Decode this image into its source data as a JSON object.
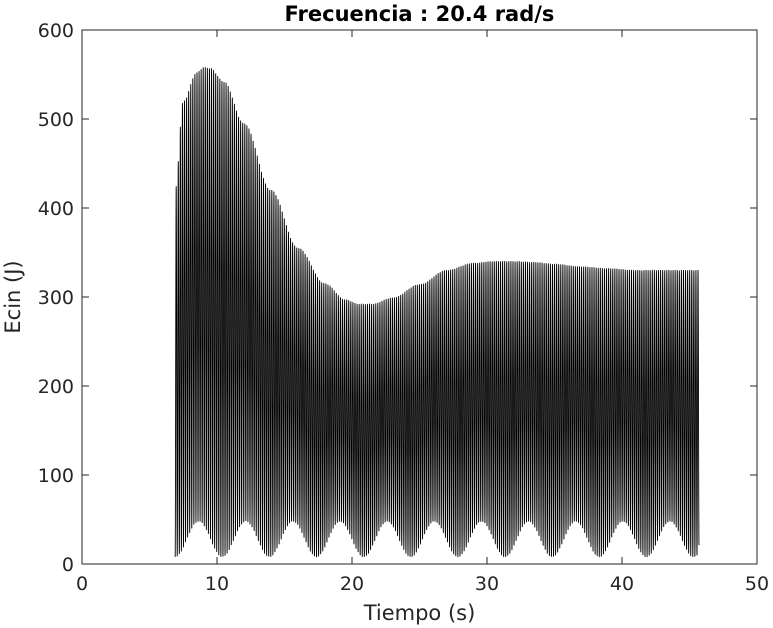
{
  "chart_data": {
    "type": "line",
    "title": "Frecuencia : 20.4 rad/s",
    "xlabel": "Tiempo (s)",
    "ylabel": "Ecin (J)",
    "xlim": [
      0,
      50
    ],
    "ylim": [
      0,
      600
    ],
    "xticks": [
      0,
      10,
      20,
      30,
      40,
      50
    ],
    "yticks": [
      0,
      100,
      200,
      300,
      400,
      500,
      600
    ],
    "xtick_labels": [
      "0",
      "10",
      "20",
      "30",
      "40",
      "50"
    ],
    "ytick_labels": [
      "0",
      "100",
      "200",
      "300",
      "400",
      "500",
      "600"
    ],
    "grid": false,
    "legend": "none",
    "series": [
      {
        "color": "#000000",
        "angular_frequency": 20.4,
        "x_start": 6.9,
        "x_end": 45.7,
        "envelope": {
          "x": [
            6.9,
            7.5,
            8.5,
            9.0,
            9.5,
            10.5,
            12.0,
            14.0,
            16.0,
            18.0,
            19.5,
            20.5,
            21.5,
            23.0,
            25.0,
            27.0,
            29.0,
            30.5,
            32.0,
            33.5,
            35.0,
            37.0,
            39.0,
            41.0,
            43.0,
            45.7
          ],
          "y_max": [
            420,
            520,
            552,
            558,
            557,
            542,
            495,
            420,
            355,
            315,
            297,
            292,
            292,
            299,
            314,
            330,
            338,
            340,
            340,
            339,
            337,
            334,
            332,
            330,
            330,
            330
          ]
        }
      }
    ]
  }
}
